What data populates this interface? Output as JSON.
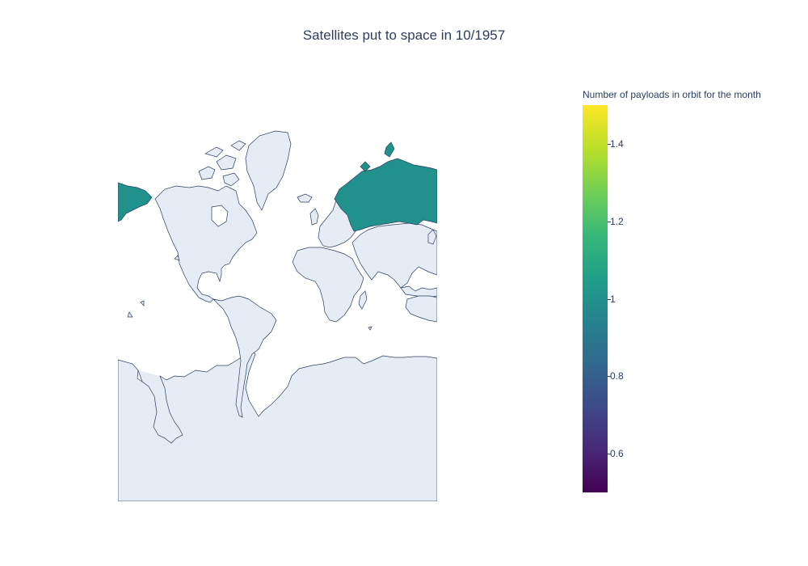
{
  "title": "Satellites put to space in 10/1957",
  "colorbar": {
    "title": "Number of payloads in orbit for the month",
    "colorscale": "viridis",
    "range": [
      0.5,
      1.5
    ],
    "ticks": [
      "1.4",
      "1.2",
      "1",
      "0.8",
      "0.6"
    ],
    "tick_values": [
      1.4,
      1.2,
      1.0,
      0.8,
      0.6
    ]
  },
  "map": {
    "projection": "mercator",
    "land_color": "#e5ecf6",
    "coastline_color": "#2a3f5f",
    "highlighted": [
      {
        "country": "Russia",
        "value": 1,
        "color": "#21918c"
      }
    ]
  }
}
